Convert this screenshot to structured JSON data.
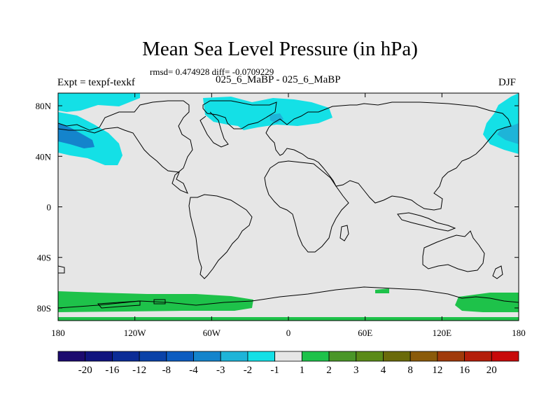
{
  "title": "Mean Sea Level Pressure (in hPa)",
  "stats": "rmsd= 0.474928 diff= -0.0709229",
  "experiment": "Expt = texpf-texkf",
  "runs": "025_6_MaBP - 025_6_MaBP",
  "season": "DJF",
  "lat_labels": [
    "80N",
    "40N",
    "0",
    "40S",
    "80S"
  ],
  "lat_values": [
    80,
    40,
    0,
    -40,
    -80
  ],
  "lon_labels": [
    "180",
    "120W",
    "60W",
    "0",
    "60E",
    "120E",
    "180"
  ],
  "lon_values": [
    -180,
    -120,
    -60,
    0,
    60,
    120,
    180
  ],
  "colorbar": {
    "levels": [
      "-20",
      "-16",
      "-12",
      "-8",
      "-4",
      "-3",
      "-2",
      "-1",
      "1",
      "2",
      "3",
      "4",
      "8",
      "12",
      "16",
      "20"
    ],
    "colors": [
      "#1c0a6e",
      "#10147e",
      "#0b2c96",
      "#0a42a8",
      "#0c5cc0",
      "#1484cc",
      "#1eb4d8",
      "#14e0e6",
      "#e6e6e6",
      "#1ec24a",
      "#4a9628",
      "#5a8a18",
      "#6a6a0a",
      "#8a5a0a",
      "#a03a0a",
      "#b41e0a",
      "#c80a0a"
    ]
  },
  "colors": {
    "land_bg": "#e6e6e6",
    "cyan": "#14e0e6",
    "teal": "#1eb4d8",
    "blue": "#1484cc",
    "green": "#1ec24a"
  }
}
